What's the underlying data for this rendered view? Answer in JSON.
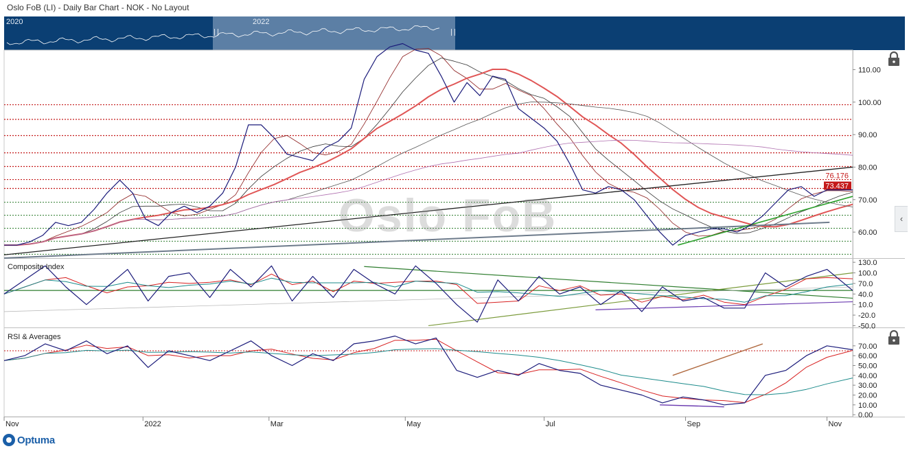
{
  "title": "Oslo FoB (LI) - Daily Bar Chart - NOK - No Layout",
  "navigator": {
    "years": [
      "2020",
      "2022"
    ]
  },
  "watermark": "Oslo FoB",
  "footer": {
    "brand": "Optuma"
  },
  "colors": {
    "price": "#1a1a7a",
    "dotted_red": "#c41a1a",
    "dotted_green": "#2e7d2e",
    "ma_red": "#e05555",
    "navigator": "#0b3f73"
  },
  "icons": [
    "lock-icon",
    "lock-icon",
    "chevron-left-icon"
  ],
  "chart_data": [
    {
      "type": "line",
      "panel": "price",
      "title": "",
      "x_tick_labels": [
        "Nov",
        "2022",
        "Mar",
        "May",
        "Jul",
        "Sep",
        "Nov"
      ],
      "y_ticks": [
        60,
        70,
        80,
        90,
        100,
        110
      ],
      "y_tick_labels": [
        "60.00",
        "70.00",
        "80.00",
        "90.00",
        "100.00",
        "110.00"
      ],
      "ylim": [
        52,
        116
      ],
      "value_labels": [
        "76.176",
        "73.437"
      ],
      "red_levels": [
        99.2,
        94.7,
        89.7,
        84.4,
        80.2,
        76.176,
        73.437
      ],
      "green_levels": [
        69.2,
        65.2,
        61.2,
        57.2,
        53.2
      ],
      "series": [
        {
          "x": [
            0,
            5,
            10,
            15,
            20,
            25,
            30,
            35,
            40,
            45,
            50,
            55,
            60,
            65,
            70,
            75,
            80,
            85,
            90,
            95,
            100,
            105,
            110,
            115,
            120,
            125,
            130,
            135,
            140,
            145,
            150,
            155,
            160,
            165,
            170,
            175,
            180,
            185,
            190,
            195,
            200,
            205,
            210,
            215,
            220,
            225,
            230,
            235,
            240,
            245,
            250,
            255,
            260,
            265,
            270,
            275,
            280,
            285,
            290,
            295,
            300,
            305,
            310,
            315,
            320,
            325,
            330
          ],
          "y": [
            56,
            56,
            57,
            59,
            63,
            62,
            63,
            67,
            72,
            76,
            72,
            64,
            62,
            66,
            68,
            66,
            68,
            72,
            80,
            93,
            93,
            89,
            84,
            83,
            82,
            86,
            88,
            92,
            107,
            114,
            117,
            118,
            116,
            115,
            108,
            100,
            106,
            102,
            108,
            107,
            98,
            95,
            92,
            88,
            81,
            73,
            72,
            74,
            73,
            70,
            65,
            60,
            56,
            59,
            60,
            61,
            61,
            60,
            62,
            65,
            69,
            73,
            74,
            71,
            73,
            73,
            73
          ]
        },
        {
          "x": [
            0,
            20,
            40,
            60,
            80,
            100,
            120,
            140,
            160,
            180,
            200,
            220,
            240,
            260,
            280,
            300,
            320,
            330
          ],
          "y": [
            55,
            57,
            63,
            66,
            69,
            74,
            84,
            89,
            106,
            112,
            108,
            99,
            83,
            68,
            62,
            61,
            65,
            67
          ]
        }
      ],
      "trendlines": [
        {
          "name": "",
          "from": [
            0,
            53
          ],
          "to": [
            330,
            80
          ]
        },
        {
          "name": "",
          "from": [
            0,
            52
          ],
          "to": [
            321,
            63
          ]
        },
        {
          "name": "",
          "from": [
            262,
            56
          ],
          "to": [
            330,
            71
          ]
        }
      ]
    },
    {
      "type": "line",
      "panel": "composite",
      "title": "Composite Index",
      "y_tick_labels": [
        "130.0",
        "100.0",
        "70.0",
        "40.0",
        "10.0",
        "-20.0",
        "-50.0"
      ],
      "ylim": [
        -55,
        140
      ],
      "series": [
        {
          "x": [
            0,
            8,
            16,
            24,
            32,
            40,
            48,
            56,
            64,
            72,
            80,
            88,
            96,
            104,
            112,
            120,
            128,
            136,
            144,
            152,
            160,
            168,
            176,
            184,
            192,
            200,
            208,
            216,
            224,
            232,
            240,
            248,
            256,
            264,
            272,
            280,
            288,
            296,
            304,
            312,
            320,
            330
          ],
          "y": [
            40,
            80,
            120,
            60,
            10,
            60,
            110,
            20,
            90,
            100,
            30,
            110,
            60,
            120,
            20,
            90,
            30,
            110,
            70,
            40,
            120,
            70,
            10,
            -40,
            80,
            20,
            90,
            40,
            60,
            10,
            50,
            -10,
            60,
            20,
            30,
            0,
            0,
            100,
            60,
            90,
            110,
            50
          ]
        }
      ]
    },
    {
      "type": "line",
      "panel": "rsi",
      "title": "RSI & Averages",
      "y_tick_labels": [
        "70.00",
        "60.00",
        "50.00",
        "40.00",
        "30.00",
        "20.00",
        "10.00",
        "0.00"
      ],
      "ylim": [
        -2,
        88
      ],
      "series": [
        {
          "x": [
            0,
            8,
            16,
            24,
            32,
            40,
            48,
            56,
            64,
            72,
            80,
            88,
            96,
            104,
            112,
            120,
            128,
            136,
            144,
            152,
            160,
            168,
            176,
            184,
            192,
            200,
            208,
            216,
            224,
            232,
            240,
            248,
            256,
            264,
            272,
            280,
            288,
            296,
            304,
            312,
            320,
            330
          ],
          "y": [
            55,
            60,
            72,
            65,
            75,
            62,
            70,
            48,
            65,
            60,
            55,
            65,
            75,
            60,
            50,
            62,
            55,
            72,
            75,
            80,
            72,
            78,
            45,
            38,
            45,
            40,
            52,
            45,
            42,
            30,
            25,
            20,
            12,
            18,
            15,
            10,
            12,
            40,
            45,
            60,
            70,
            66
          ]
        }
      ]
    }
  ]
}
